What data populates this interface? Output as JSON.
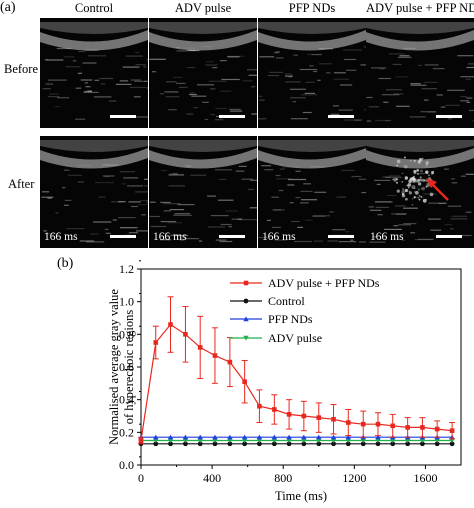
{
  "panel_a": {
    "label": "(a)",
    "columns": [
      "Control",
      "ADV pulse",
      "PFP NDs",
      "ADV pulse + PFP NDs"
    ],
    "rows": [
      "Before",
      "After"
    ],
    "timestamp": "166 ms",
    "arrow_color": "#e8281e"
  },
  "panel_b": {
    "label": "(b)"
  },
  "chart_data": {
    "type": "line",
    "title": "",
    "xlabel": "Time (ms)",
    "ylabel": "Normalised average gray value of hyperechoic regions",
    "ylabel_lines": [
      "Normalised average gray value",
      "of hyperechoic regions"
    ],
    "xlim": [
      0,
      1800
    ],
    "ylim": [
      0,
      1.2
    ],
    "xticks": [
      0,
      400,
      800,
      1200,
      1600
    ],
    "xtick_labels": [
      "0",
      "400",
      "800",
      "1200",
      "1600"
    ],
    "yticks": [
      0.0,
      0.2,
      0.4,
      0.6,
      0.8,
      1.0,
      1.2
    ],
    "ytick_labels": [
      "0.0",
      "0.2",
      "0.4",
      "0.6",
      "0.8",
      "1.0",
      "1.2"
    ],
    "grid": false,
    "legend": "top-right",
    "x": [
      0,
      83,
      166,
      250,
      333,
      416,
      500,
      583,
      666,
      750,
      833,
      916,
      1000,
      1083,
      1166,
      1250,
      1333,
      1416,
      1500,
      1583,
      1666,
      1750
    ],
    "series": [
      {
        "name": "ADV pulse + PFP NDs",
        "color": "#e8281e",
        "marker": "square",
        "values": [
          0.15,
          0.75,
          0.86,
          0.8,
          0.72,
          0.67,
          0.63,
          0.51,
          0.36,
          0.34,
          0.31,
          0.3,
          0.29,
          0.28,
          0.26,
          0.25,
          0.25,
          0.24,
          0.23,
          0.23,
          0.22,
          0.21
        ],
        "errors": [
          0.02,
          0.1,
          0.17,
          0.17,
          0.19,
          0.17,
          0.15,
          0.13,
          0.1,
          0.09,
          0.09,
          0.09,
          0.09,
          0.09,
          0.08,
          0.08,
          0.07,
          0.07,
          0.06,
          0.06,
          0.05,
          0.05
        ]
      },
      {
        "name": "Control",
        "color": "#111111",
        "marker": "circle",
        "values": [
          0.13,
          0.13,
          0.13,
          0.13,
          0.13,
          0.13,
          0.13,
          0.13,
          0.13,
          0.13,
          0.13,
          0.13,
          0.13,
          0.13,
          0.13,
          0.13,
          0.13,
          0.13,
          0.13,
          0.13,
          0.13,
          0.13
        ]
      },
      {
        "name": "PFP NDs",
        "color": "#1f3fe0",
        "marker": "triangle-up",
        "values": [
          0.17,
          0.17,
          0.17,
          0.17,
          0.17,
          0.17,
          0.17,
          0.17,
          0.17,
          0.17,
          0.17,
          0.17,
          0.17,
          0.17,
          0.17,
          0.17,
          0.17,
          0.17,
          0.17,
          0.17,
          0.17,
          0.17
        ]
      },
      {
        "name": "ADV pulse",
        "color": "#22b04a",
        "marker": "triangle-down",
        "values": [
          0.15,
          0.15,
          0.15,
          0.15,
          0.15,
          0.15,
          0.15,
          0.15,
          0.15,
          0.15,
          0.15,
          0.15,
          0.15,
          0.15,
          0.15,
          0.15,
          0.15,
          0.15,
          0.15,
          0.15,
          0.15,
          0.15
        ]
      }
    ]
  }
}
